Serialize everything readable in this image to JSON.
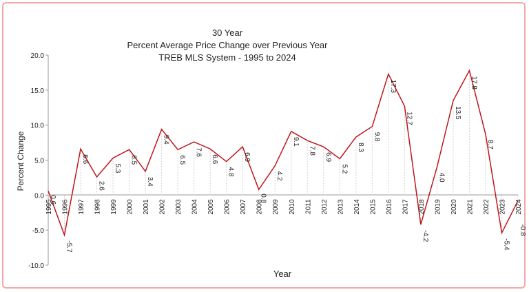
{
  "chart_data": {
    "type": "line",
    "title": [
      "30 Year",
      "Percent Average Price Change over Previous Year",
      "TREB MLS System - 1995 to 2024"
    ],
    "xlabel": "Year",
    "ylabel": "Percent  Change",
    "ylim": [
      -10,
      20
    ],
    "yticks": [
      "-10.0",
      "-5.0",
      "0.0",
      "5.0",
      "10.0",
      "15.0",
      "20.0"
    ],
    "categories": [
      "1995",
      "1996",
      "1997",
      "1998",
      "1999",
      "2000",
      "2001",
      "2002",
      "2003",
      "2004",
      "2005",
      "2006",
      "2007",
      "2008",
      "2009",
      "2010",
      "2011",
      "2012",
      "2013",
      "2014",
      "2015",
      "2016",
      "2017",
      "2018",
      "2019",
      "2020",
      "2021",
      "2022",
      "2023",
      "2024"
    ],
    "value_labels": [
      "0.6",
      "-5.7",
      "6.6",
      "2.6",
      "5.3",
      "6.5",
      "3.4",
      "9.4",
      "6.5",
      "7.6",
      "6.6",
      "4.8",
      "6.9",
      "0.8",
      "4.2",
      "9.1",
      "7.8",
      "6.9",
      "5.2",
      "8.3",
      "9.8",
      "17.3",
      "12.7",
      "-4.2",
      "4.0",
      "13.5",
      "17.8",
      "8.7",
      "-5.4",
      "-0.8"
    ],
    "values": [
      0.6,
      -5.7,
      6.6,
      2.6,
      5.3,
      6.5,
      3.4,
      9.4,
      6.5,
      7.6,
      6.6,
      4.8,
      6.9,
      0.8,
      4.2,
      9.1,
      7.8,
      6.9,
      5.2,
      8.3,
      9.8,
      17.3,
      12.7,
      -4.2,
      4.0,
      13.5,
      17.8,
      8.7,
      -5.4,
      -0.8
    ],
    "line_color": "#c0151b",
    "grid": false
  }
}
